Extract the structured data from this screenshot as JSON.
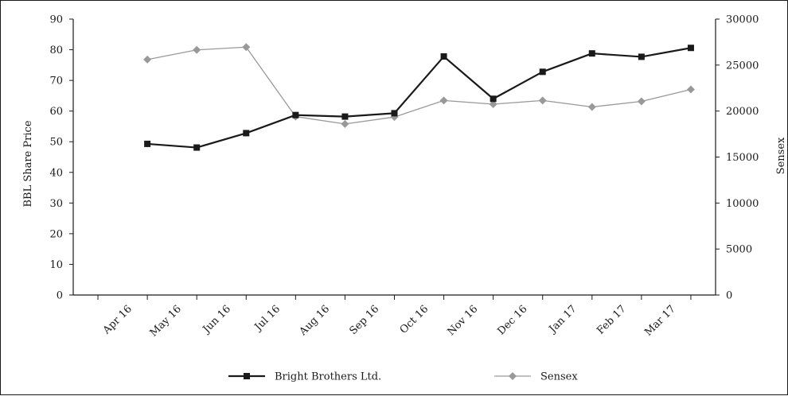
{
  "chart_data": {
    "type": "line",
    "categories": [
      "Apr 16",
      "May 16",
      "Jun 16",
      "Jul 16",
      "Aug 16",
      "Sep 16",
      "Oct 16",
      "Nov 16",
      "Dec 16",
      "Jan 17",
      "Feb 17",
      "Mar 17"
    ],
    "ylabel_left": "BBL Share Price",
    "ylabel_right": "Sensex",
    "ylim_left": [
      0,
      90
    ],
    "ylim_right": [
      0,
      30000
    ],
    "yticks_left": [
      "0",
      "10",
      "20",
      "30",
      "40",
      "50",
      "60",
      "70",
      "80",
      "90"
    ],
    "yticks_right": [
      "0",
      "5000",
      "10000",
      "15000",
      "20000",
      "25000",
      "30000"
    ],
    "grid": false,
    "legend_position": "bottom",
    "series": [
      {
        "name": "Bright Brothers Ltd.",
        "axis": "left",
        "marker": "square",
        "color": "#1a1a1a",
        "x": [
          1.5,
          2.5,
          3.5,
          4.5,
          5.5,
          6.5,
          7.5,
          8.5,
          9.5,
          10.5,
          11.5,
          12.5
        ],
        "values": [
          49.3,
          48.1,
          52.8,
          58.7,
          58.2,
          59.3,
          77.8,
          64.0,
          72.8,
          78.8,
          77.7,
          80.6
        ]
      },
      {
        "name": "Sensex",
        "axis": "right",
        "marker": "diamond",
        "color": "#999999",
        "x": [
          1.5,
          2.5,
          3.5,
          4.5,
          5.5,
          6.5,
          7.5,
          8.5,
          9.5,
          10.5,
          11.5,
          12.5
        ],
        "values": [
          25600,
          26650,
          26950,
          19400,
          18600,
          19350,
          21150,
          20750,
          21150,
          20450,
          21050,
          22350
        ]
      }
    ]
  }
}
